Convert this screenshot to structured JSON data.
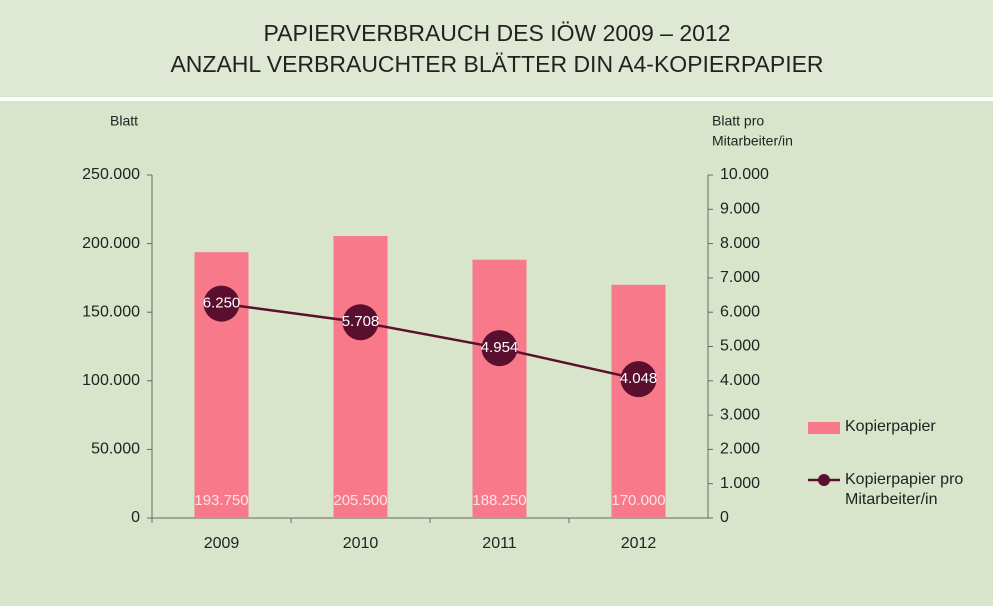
{
  "chart_data": {
    "type": "bar",
    "title": "PAPIERVERBRAUCH DES IÖW 2009 – 2012",
    "subtitle": "ANZAHL VERBRAUCHTER BLÄTTER DIN A4-KOPIERPAPIER",
    "y_label": "Blatt",
    "y2_label": [
      "Blatt pro",
      "Mitarbeiter/in"
    ],
    "categories": [
      "2009",
      "2010",
      "2011",
      "2012"
    ],
    "series": [
      {
        "name": "Kopierpapier",
        "type": "bar",
        "color": "#f7798a",
        "values": [
          193750,
          205500,
          188250,
          170000
        ],
        "value_labels": [
          "193.750",
          "205.500",
          "188.250",
          "170.000"
        ]
      },
      {
        "name": "Kopierpapier pro Mitarbeiter/in",
        "type": "line",
        "axis": "y2",
        "color": "#5a0f2e",
        "values": [
          6250,
          5708,
          4954,
          4048
        ],
        "value_labels": [
          "6.250",
          "5.708",
          "4.954",
          "4.048"
        ]
      }
    ],
    "ylim": [
      0,
      250000
    ],
    "yticks": [
      0,
      {
        "value": 50000,
        "label": "50.000"
      },
      {
        "value": 100000,
        "label": "100.000"
      },
      {
        "value": 150000,
        "label": "150.000"
      },
      {
        "value": 200000,
        "label": "200.000"
      },
      {
        "value": 250000,
        "label": "250.000"
      }
    ],
    "y2lim": [
      0,
      10000
    ],
    "y2ticks": [
      0,
      {
        "value": 1000,
        "label": "1.000"
      },
      {
        "value": 2000,
        "label": "2.000"
      },
      {
        "value": 3000,
        "label": "3.000"
      },
      {
        "value": 4000,
        "label": "4.000"
      },
      {
        "value": 5000,
        "label": "5.000"
      },
      {
        "value": 6000,
        "label": "6.000"
      },
      {
        "value": 7000,
        "label": "7.000"
      },
      {
        "value": 8000,
        "label": "8.000"
      },
      {
        "value": 9000,
        "label": "9.000"
      },
      {
        "value": 10000,
        "label": "10.000"
      }
    ],
    "grid": false,
    "legend": "right"
  }
}
